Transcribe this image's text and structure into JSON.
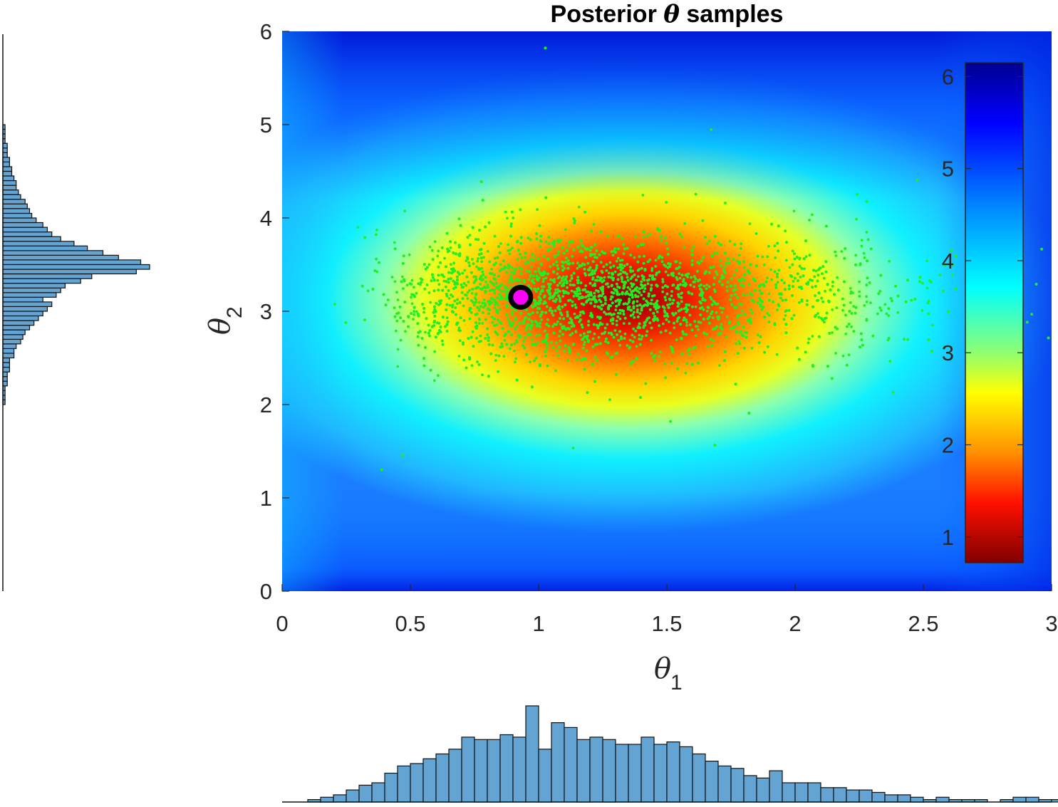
{
  "chart_data": {
    "type": "scatter",
    "title": {
      "prefix": "Posterior ",
      "symbol": "θ",
      "suffix": " samples"
    },
    "xlabel": {
      "symbol": "θ",
      "subscript": "1"
    },
    "ylabel": {
      "symbol": "θ",
      "subscript": "2"
    },
    "xlim": [
      0,
      3
    ],
    "ylim": [
      0,
      6
    ],
    "xticks": [
      0,
      0.5,
      1,
      1.5,
      2,
      2.5,
      3
    ],
    "xtick_labels": [
      "0",
      "0.5",
      "1",
      "1.5",
      "2",
      "2.5",
      "3"
    ],
    "yticks": [
      0,
      1,
      2,
      3,
      4,
      5,
      6
    ],
    "ytick_labels": [
      "0",
      "1",
      "2",
      "3",
      "4",
      "5",
      "6"
    ],
    "background": {
      "type": "filled-contour",
      "colormap": "jet (reversed)",
      "description_values": "negative log posterior",
      "center": [
        0.93,
        3.15
      ]
    },
    "colorbar": {
      "range": [
        0.72,
        6.15
      ],
      "ticks": [
        1,
        2,
        3,
        4,
        5,
        6
      ],
      "tick_labels": [
        "1",
        "2",
        "3",
        "4",
        "5",
        "6"
      ],
      "placement": "inside-right"
    },
    "samples": {
      "color": "#22ee22",
      "count_approx": 5000,
      "theta1_distribution": "right-skewed, mode ≈ 1.0, range 0.15–3.0",
      "theta2_distribution": "centered ≈ 3.15, sd ≈ 0.35"
    },
    "map_estimate": {
      "x": 0.93,
      "y": 3.15,
      "color": "#ff00ff",
      "edge": "#000000"
    },
    "histogram_theta1": {
      "bin_width": 0.05,
      "start": 0,
      "values": [
        0,
        0,
        1,
        2,
        3,
        5,
        7,
        8,
        12,
        15,
        16,
        18,
        20,
        22,
        27,
        26,
        26,
        28,
        27,
        40,
        22,
        33,
        31,
        26,
        27,
        26,
        24,
        24,
        27,
        24,
        25,
        23,
        20,
        17,
        15,
        14,
        11,
        10,
        13,
        8,
        8,
        8,
        6,
        6,
        5,
        5,
        4,
        3,
        3,
        2,
        1,
        2,
        1,
        1,
        1,
        0,
        1,
        2,
        2,
        1,
        1,
        0,
        0,
        0,
        0,
        1,
        1,
        0,
        0,
        2,
        1,
        0
      ]
    },
    "histogram_theta2": {
      "bin_width": 0.05,
      "start": 0,
      "values": [
        0,
        0,
        0,
        0,
        0,
        0,
        0,
        0,
        0,
        0,
        0,
        0,
        0,
        0,
        0,
        0,
        0,
        0,
        0,
        0,
        0,
        0,
        0,
        0,
        0,
        0,
        0,
        0,
        0,
        0,
        0,
        0,
        0,
        0,
        0,
        0,
        0,
        0,
        0,
        0,
        1,
        1,
        1,
        1,
        2,
        2,
        2,
        3,
        3,
        3,
        5,
        5,
        6,
        8,
        9,
        10,
        12,
        14,
        16,
        18,
        20,
        22,
        18,
        24,
        26,
        28,
        35,
        40,
        60,
        66,
        62,
        52,
        45,
        38,
        32,
        26,
        22,
        20,
        18,
        15,
        13,
        12,
        11,
        10,
        8,
        7,
        6,
        6,
        5,
        4,
        4,
        3,
        3,
        2,
        2,
        2,
        1,
        1,
        1,
        1,
        0,
        0,
        0,
        0,
        0,
        0,
        0,
        0,
        0,
        0,
        0,
        0,
        0,
        0,
        0,
        0,
        0,
        0,
        0,
        0,
        0
      ]
    },
    "histogram_color": "#63a4d2"
  }
}
